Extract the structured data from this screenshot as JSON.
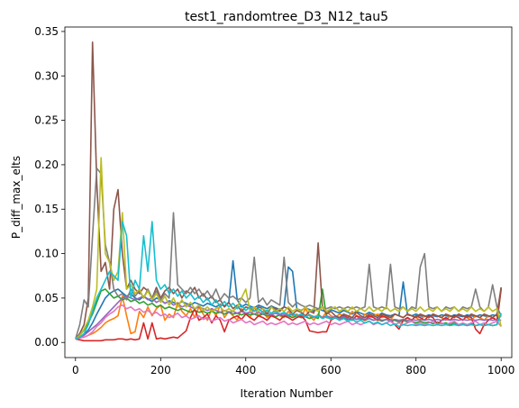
{
  "chart_data": {
    "type": "line",
    "title": "test1_randomtree_D3_N12_tau5",
    "xlabel": "Iteration Number",
    "ylabel": "P_diff_max_elts",
    "xlim": [
      -25,
      1025
    ],
    "ylim": [
      -0.017,
      0.355
    ],
    "xticks": [
      0,
      200,
      400,
      600,
      800,
      1000
    ],
    "xtick_labels": [
      "0",
      "200",
      "400",
      "600",
      "800",
      "1000"
    ],
    "yticks": [
      0.0,
      0.05,
      0.1,
      0.15,
      0.2,
      0.25,
      0.3,
      0.35
    ],
    "ytick_labels": [
      "0.00",
      "0.05",
      "0.10",
      "0.15",
      "0.20",
      "0.25",
      "0.30",
      "0.35"
    ],
    "grid": false,
    "legend": "none",
    "x": [
      0,
      10,
      20,
      30,
      40,
      50,
      60,
      70,
      80,
      90,
      100,
      110,
      120,
      130,
      140,
      150,
      160,
      170,
      180,
      190,
      200,
      210,
      220,
      230,
      240,
      250,
      260,
      270,
      280,
      290,
      300,
      310,
      320,
      330,
      340,
      350,
      360,
      370,
      380,
      390,
      400,
      410,
      420,
      430,
      440,
      450,
      460,
      470,
      480,
      490,
      500,
      510,
      520,
      530,
      540,
      550,
      560,
      570,
      580,
      590,
      600,
      610,
      620,
      630,
      640,
      650,
      660,
      670,
      680,
      690,
      700,
      710,
      720,
      730,
      740,
      750,
      760,
      770,
      780,
      790,
      800,
      810,
      820,
      830,
      840,
      850,
      860,
      870,
      880,
      890,
      900,
      910,
      920,
      930,
      940,
      950,
      960,
      970,
      980,
      990,
      1000
    ],
    "series": [
      {
        "color": "#1f77b4",
        "values": [
          0.004,
          0.006,
          0.009,
          0.014,
          0.022,
          0.032,
          0.041,
          0.05,
          0.055,
          0.058,
          0.06,
          0.056,
          0.052,
          0.055,
          0.05,
          0.048,
          0.052,
          0.049,
          0.046,
          0.05,
          0.048,
          0.044,
          0.047,
          0.045,
          0.043,
          0.046,
          0.044,
          0.042,
          0.045,
          0.043,
          0.041,
          0.044,
          0.042,
          0.04,
          0.043,
          0.041,
          0.045,
          0.092,
          0.048,
          0.04,
          0.043,
          0.041,
          0.039,
          0.042,
          0.04,
          0.038,
          0.041,
          0.039,
          0.037,
          0.04,
          0.085,
          0.08,
          0.038,
          0.036,
          0.039,
          0.037,
          0.035,
          0.038,
          0.036,
          0.034,
          0.037,
          0.035,
          0.033,
          0.036,
          0.034,
          0.032,
          0.035,
          0.033,
          0.031,
          0.034,
          0.032,
          0.03,
          0.033,
          0.031,
          0.03,
          0.032,
          0.03,
          0.068,
          0.031,
          0.03,
          0.032,
          0.03,
          0.029,
          0.031,
          0.03,
          0.029,
          0.031,
          0.03,
          0.029,
          0.031,
          0.03,
          0.029,
          0.031,
          0.03,
          0.029,
          0.031,
          0.03,
          0.029,
          0.031,
          0.03,
          0.029
        ]
      },
      {
        "color": "#ff7f0e",
        "values": [
          0.004,
          0.005,
          0.006,
          0.008,
          0.01,
          0.013,
          0.017,
          0.022,
          0.025,
          0.027,
          0.03,
          0.052,
          0.03,
          0.01,
          0.012,
          0.035,
          0.028,
          0.04,
          0.03,
          0.038,
          0.042,
          0.025,
          0.032,
          0.028,
          0.045,
          0.035,
          0.03,
          0.038,
          0.028,
          0.04,
          0.032,
          0.025,
          0.038,
          0.03,
          0.042,
          0.028,
          0.035,
          0.03,
          0.025,
          0.038,
          0.032,
          0.028,
          0.04,
          0.03,
          0.035,
          0.028,
          0.032,
          0.038,
          0.03,
          0.028,
          0.035,
          0.03,
          0.032,
          0.028,
          0.038,
          0.03,
          0.025,
          0.032,
          0.028,
          0.035,
          0.03,
          0.028,
          0.032,
          0.03,
          0.028,
          0.035,
          0.03,
          0.025,
          0.032,
          0.028,
          0.03,
          0.032,
          0.028,
          0.03,
          0.025,
          0.032,
          0.03,
          0.028,
          0.032,
          0.03,
          0.028,
          0.025,
          0.03,
          0.028,
          0.032,
          0.03,
          0.028,
          0.025,
          0.03,
          0.028,
          0.032,
          0.03,
          0.028,
          0.025,
          0.03,
          0.028,
          0.025,
          0.03,
          0.028,
          0.025,
          0.03
        ]
      },
      {
        "color": "#2ca02c",
        "values": [
          0.004,
          0.008,
          0.014,
          0.022,
          0.032,
          0.045,
          0.058,
          0.06,
          0.055,
          0.05,
          0.052,
          0.048,
          0.05,
          0.046,
          0.048,
          0.044,
          0.046,
          0.042,
          0.044,
          0.04,
          0.042,
          0.038,
          0.04,
          0.038,
          0.036,
          0.038,
          0.036,
          0.034,
          0.036,
          0.034,
          0.035,
          0.033,
          0.035,
          0.033,
          0.034,
          0.032,
          0.034,
          0.032,
          0.033,
          0.031,
          0.033,
          0.031,
          0.032,
          0.03,
          0.032,
          0.03,
          0.031,
          0.029,
          0.031,
          0.029,
          0.03,
          0.028,
          0.03,
          0.028,
          0.029,
          0.027,
          0.029,
          0.027,
          0.06,
          0.028,
          0.027,
          0.029,
          0.027,
          0.028,
          0.026,
          0.028,
          0.026,
          0.027,
          0.025,
          0.027,
          0.025,
          0.026,
          0.024,
          0.026,
          0.024,
          0.025,
          0.023,
          0.025,
          0.023,
          0.024,
          0.022,
          0.024,
          0.022,
          0.023,
          0.021,
          0.023,
          0.021,
          0.022,
          0.02,
          0.022,
          0.02,
          0.021,
          0.019,
          0.021,
          0.019,
          0.02,
          0.019,
          0.02,
          0.019,
          0.02,
          0.062
        ]
      },
      {
        "color": "#d62728",
        "values": [
          0.004,
          0.003,
          0.002,
          0.002,
          0.002,
          0.002,
          0.002,
          0.003,
          0.003,
          0.003,
          0.004,
          0.004,
          0.003,
          0.004,
          0.003,
          0.004,
          0.022,
          0.004,
          0.022,
          0.004,
          0.005,
          0.004,
          0.005,
          0.006,
          0.005,
          0.009,
          0.013,
          0.028,
          0.038,
          0.025,
          0.028,
          0.032,
          0.022,
          0.03,
          0.025,
          0.012,
          0.025,
          0.028,
          0.03,
          0.026,
          0.032,
          0.028,
          0.025,
          0.03,
          0.028,
          0.025,
          0.03,
          0.028,
          0.025,
          0.03,
          0.028,
          0.025,
          0.028,
          0.03,
          0.025,
          0.013,
          0.012,
          0.011,
          0.012,
          0.012,
          0.025,
          0.028,
          0.025,
          0.03,
          0.028,
          0.025,
          0.03,
          0.028,
          0.025,
          0.03,
          0.028,
          0.025,
          0.03,
          0.028,
          0.025,
          0.02,
          0.015,
          0.025,
          0.028,
          0.025,
          0.03,
          0.028,
          0.025,
          0.03,
          0.028,
          0.02,
          0.025,
          0.028,
          0.025,
          0.03,
          0.028,
          0.025,
          0.03,
          0.028,
          0.015,
          0.01,
          0.02,
          0.025,
          0.028,
          0.025,
          0.06
        ]
      },
      {
        "color": "#9467bd",
        "values": [
          0.004,
          0.006,
          0.008,
          0.012,
          0.016,
          0.02,
          0.025,
          0.03,
          0.035,
          0.04,
          0.045,
          0.05,
          0.052,
          0.05,
          0.048,
          0.05,
          0.052,
          0.048,
          0.05,
          0.045,
          0.048,
          0.044,
          0.046,
          0.042,
          0.044,
          0.04,
          0.042,
          0.04,
          0.038,
          0.04,
          0.038,
          0.036,
          0.038,
          0.036,
          0.034,
          0.036,
          0.034,
          0.035,
          0.033,
          0.035,
          0.033,
          0.034,
          0.032,
          0.034,
          0.032,
          0.033,
          0.031,
          0.033,
          0.031,
          0.032,
          0.03,
          0.032,
          0.03,
          0.031,
          0.029,
          0.031,
          0.029,
          0.03,
          0.028,
          0.03,
          0.028,
          0.029,
          0.027,
          0.029,
          0.027,
          0.028,
          0.026,
          0.028,
          0.026,
          0.027,
          0.025,
          0.027,
          0.025,
          0.026,
          0.025,
          0.026,
          0.025,
          0.026,
          0.025,
          0.026,
          0.025,
          0.026,
          0.025,
          0.026,
          0.025,
          0.026,
          0.025,
          0.026,
          0.025,
          0.026,
          0.025,
          0.026,
          0.025,
          0.026,
          0.025,
          0.026,
          0.025,
          0.026,
          0.025,
          0.026,
          0.025
        ]
      },
      {
        "color": "#8c564b",
        "values": [
          0.004,
          0.01,
          0.02,
          0.05,
          0.338,
          0.18,
          0.08,
          0.09,
          0.06,
          0.15,
          0.172,
          0.1,
          0.06,
          0.07,
          0.06,
          0.055,
          0.062,
          0.058,
          0.05,
          0.062,
          0.05,
          0.058,
          0.062,
          0.055,
          0.06,
          0.05,
          0.058,
          0.055,
          0.062,
          0.05,
          0.055,
          0.048,
          0.052,
          0.045,
          0.048,
          0.04,
          0.045,
          0.038,
          0.042,
          0.035,
          0.04,
          0.038,
          0.035,
          0.04,
          0.038,
          0.032,
          0.04,
          0.038,
          0.035,
          0.04,
          0.038,
          0.032,
          0.036,
          0.034,
          0.03,
          0.035,
          0.033,
          0.112,
          0.04,
          0.032,
          0.035,
          0.03,
          0.028,
          0.032,
          0.03,
          0.028,
          0.034,
          0.03,
          0.028,
          0.032,
          0.03,
          0.028,
          0.032,
          0.03,
          0.028,
          0.032,
          0.03,
          0.028,
          0.032,
          0.03,
          0.028,
          0.032,
          0.03,
          0.028,
          0.032,
          0.03,
          0.028,
          0.032,
          0.03,
          0.028,
          0.032,
          0.03,
          0.028,
          0.032,
          0.03,
          0.028,
          0.032,
          0.03,
          0.028,
          0.032,
          0.062
        ]
      },
      {
        "color": "#e377c2",
        "values": [
          0.004,
          0.005,
          0.006,
          0.008,
          0.012,
          0.018,
          0.022,
          0.028,
          0.032,
          0.035,
          0.04,
          0.042,
          0.038,
          0.04,
          0.036,
          0.038,
          0.034,
          0.036,
          0.032,
          0.034,
          0.03,
          0.032,
          0.028,
          0.03,
          0.033,
          0.028,
          0.03,
          0.026,
          0.028,
          0.03,
          0.026,
          0.028,
          0.024,
          0.026,
          0.028,
          0.024,
          0.026,
          0.022,
          0.024,
          0.026,
          0.022,
          0.024,
          0.02,
          0.022,
          0.024,
          0.02,
          0.022,
          0.02,
          0.022,
          0.024,
          0.02,
          0.022,
          0.02,
          0.022,
          0.024,
          0.02,
          0.022,
          0.02,
          0.022,
          0.024,
          0.02,
          0.022,
          0.02,
          0.022,
          0.024,
          0.02,
          0.022,
          0.02,
          0.022,
          0.024,
          0.02,
          0.022,
          0.02,
          0.022,
          0.024,
          0.02,
          0.022,
          0.02,
          0.022,
          0.024,
          0.02,
          0.022,
          0.02,
          0.022,
          0.024,
          0.02,
          0.022,
          0.02,
          0.022,
          0.024,
          0.02,
          0.022,
          0.02,
          0.022,
          0.024,
          0.02,
          0.022,
          0.02,
          0.022,
          0.024,
          0.018
        ]
      },
      {
        "color": "#7f7f7f",
        "values": [
          0.004,
          0.02,
          0.048,
          0.04,
          0.12,
          0.196,
          0.19,
          0.11,
          0.09,
          0.06,
          0.052,
          0.055,
          0.048,
          0.06,
          0.052,
          0.058,
          0.05,
          0.06,
          0.05,
          0.058,
          0.048,
          0.055,
          0.05,
          0.146,
          0.065,
          0.06,
          0.055,
          0.062,
          0.055,
          0.06,
          0.052,
          0.058,
          0.05,
          0.06,
          0.048,
          0.055,
          0.05,
          0.052,
          0.048,
          0.05,
          0.045,
          0.05,
          0.096,
          0.045,
          0.05,
          0.042,
          0.048,
          0.045,
          0.042,
          0.096,
          0.045,
          0.04,
          0.045,
          0.042,
          0.04,
          0.042,
          0.04,
          0.038,
          0.04,
          0.038,
          0.04,
          0.038,
          0.04,
          0.038,
          0.04,
          0.038,
          0.04,
          0.038,
          0.04,
          0.088,
          0.04,
          0.038,
          0.04,
          0.038,
          0.088,
          0.04,
          0.038,
          0.04,
          0.035,
          0.04,
          0.038,
          0.085,
          0.1,
          0.04,
          0.038,
          0.04,
          0.035,
          0.04,
          0.038,
          0.04,
          0.035,
          0.04,
          0.038,
          0.04,
          0.06,
          0.04,
          0.035,
          0.04,
          0.065,
          0.04,
          0.03
        ]
      },
      {
        "color": "#bcbd22",
        "values": [
          0.004,
          0.008,
          0.015,
          0.025,
          0.04,
          0.06,
          0.208,
          0.1,
          0.09,
          0.07,
          0.08,
          0.146,
          0.06,
          0.065,
          0.055,
          0.06,
          0.05,
          0.058,
          0.048,
          0.055,
          0.045,
          0.052,
          0.042,
          0.05,
          0.04,
          0.048,
          0.04,
          0.045,
          0.038,
          0.042,
          0.036,
          0.04,
          0.035,
          0.038,
          0.04,
          0.035,
          0.038,
          0.035,
          0.04,
          0.05,
          0.06,
          0.035,
          0.04,
          0.035,
          0.038,
          0.035,
          0.04,
          0.035,
          0.038,
          0.035,
          0.04,
          0.035,
          0.038,
          0.035,
          0.04,
          0.035,
          0.038,
          0.035,
          0.04,
          0.035,
          0.038,
          0.04,
          0.035,
          0.038,
          0.035,
          0.04,
          0.035,
          0.038,
          0.035,
          0.04,
          0.035,
          0.038,
          0.035,
          0.04,
          0.035,
          0.038,
          0.035,
          0.04,
          0.035,
          0.038,
          0.035,
          0.04,
          0.035,
          0.038,
          0.035,
          0.04,
          0.035,
          0.038,
          0.035,
          0.04,
          0.035,
          0.038,
          0.035,
          0.04,
          0.035,
          0.038,
          0.035,
          0.04,
          0.035,
          0.038,
          0.018
        ]
      },
      {
        "color": "#17becf",
        "values": [
          0.004,
          0.006,
          0.01,
          0.02,
          0.035,
          0.05,
          0.06,
          0.07,
          0.08,
          0.075,
          0.07,
          0.136,
          0.12,
          0.05,
          0.07,
          0.06,
          0.12,
          0.08,
          0.136,
          0.07,
          0.06,
          0.065,
          0.055,
          0.06,
          0.052,
          0.058,
          0.05,
          0.055,
          0.048,
          0.052,
          0.045,
          0.05,
          0.042,
          0.048,
          0.04,
          0.046,
          0.04,
          0.044,
          0.038,
          0.042,
          0.036,
          0.04,
          0.035,
          0.038,
          0.034,
          0.036,
          0.033,
          0.035,
          0.032,
          0.034,
          0.031,
          0.033,
          0.03,
          0.032,
          0.029,
          0.031,
          0.028,
          0.03,
          0.027,
          0.029,
          0.026,
          0.028,
          0.025,
          0.027,
          0.024,
          0.026,
          0.023,
          0.025,
          0.022,
          0.024,
          0.021,
          0.023,
          0.02,
          0.022,
          0.019,
          0.021,
          0.018,
          0.02,
          0.019,
          0.02,
          0.019,
          0.02,
          0.019,
          0.02,
          0.019,
          0.02,
          0.019,
          0.02,
          0.019,
          0.02,
          0.019,
          0.02,
          0.019,
          0.02,
          0.019,
          0.02,
          0.019,
          0.02,
          0.019,
          0.02,
          0.033
        ]
      }
    ]
  }
}
